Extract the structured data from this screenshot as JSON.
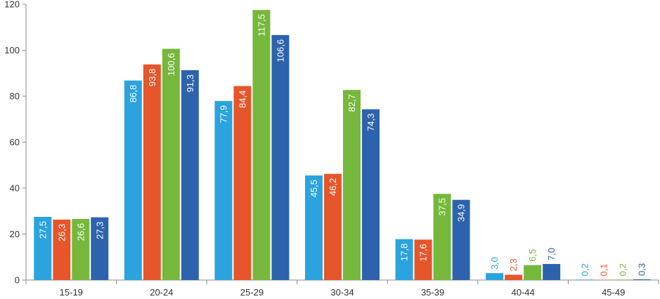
{
  "chart_data": {
    "type": "bar",
    "categories": [
      "15-19",
      "20-24",
      "25-29",
      "30-34",
      "35-39",
      "40-44",
      "45-49"
    ],
    "series": [
      {
        "values": [
          27.5,
          86.8,
          77.9,
          45.5,
          17.8,
          3.0,
          0.2
        ],
        "color": "#2aa3df",
        "labels": [
          "27,5",
          "86,8",
          "77,9",
          "45,5",
          "17,8",
          "3,0",
          "0,2"
        ]
      },
      {
        "values": [
          26.3,
          93.8,
          84.4,
          46.2,
          17.6,
          2.3,
          0.1
        ],
        "color": "#e6562a",
        "labels": [
          "26,3",
          "93,8",
          "84,4",
          "46,2",
          "17,6",
          "2,3",
          "0,1"
        ]
      },
      {
        "values": [
          26.6,
          100.6,
          117.5,
          82.7,
          37.5,
          6.5,
          0.2
        ],
        "color": "#76b83c",
        "labels": [
          "26,6",
          "100,6",
          "117,5",
          "82,7",
          "37,5",
          "6,5",
          "0,2"
        ]
      },
      {
        "values": [
          27.3,
          91.3,
          106.6,
          74.3,
          34.9,
          7.0,
          0.3
        ],
        "color": "#2d63ad",
        "labels": [
          "27,3",
          "91,3",
          "106,6",
          "74,3",
          "34,9",
          "7,0",
          "0,3"
        ]
      }
    ],
    "yticks": [
      "0",
      "20",
      "40",
      "60",
      "80",
      "100",
      "120"
    ],
    "ylim": [
      0,
      120
    ],
    "grid": false,
    "legend": "none"
  }
}
